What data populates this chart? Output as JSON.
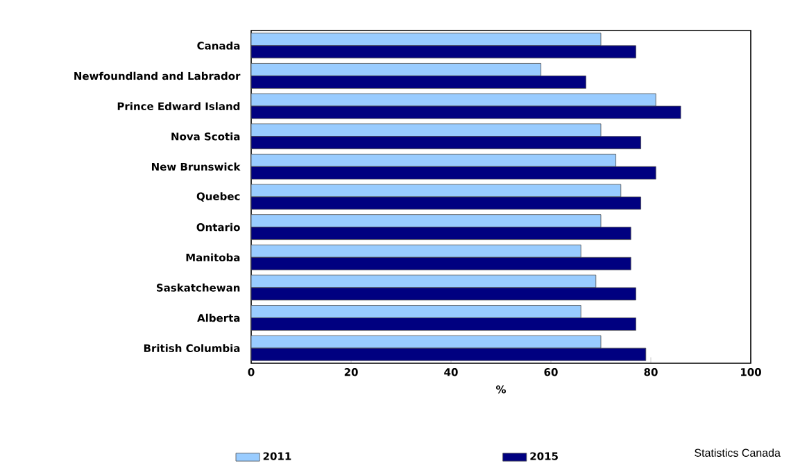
{
  "chart_data": {
    "type": "bar",
    "orientation": "horizontal",
    "xlabel": "%",
    "categories": [
      "Canada",
      "Newfoundland and Labrador",
      "Prince Edward Island",
      "Nova Scotia",
      "New Brunswick",
      "Quebec",
      "Ontario",
      "Manitoba",
      "Saskatchewan",
      "Alberta",
      "British Columbia"
    ],
    "series": [
      {
        "name": "2011",
        "color": "#99ccff",
        "values": [
          70,
          58,
          81,
          70,
          73,
          74,
          70,
          66,
          69,
          66,
          70
        ]
      },
      {
        "name": "2015",
        "color": "#000080",
        "values": [
          77,
          67,
          86,
          78,
          81,
          78,
          76,
          76,
          77,
          77,
          79
        ]
      }
    ],
    "xlim": [
      0,
      100
    ],
    "xticks": [
      0,
      20,
      40,
      60,
      80,
      100
    ],
    "grid": false,
    "legend": "bottom",
    "annotations": [
      "Statistics Canada"
    ]
  }
}
